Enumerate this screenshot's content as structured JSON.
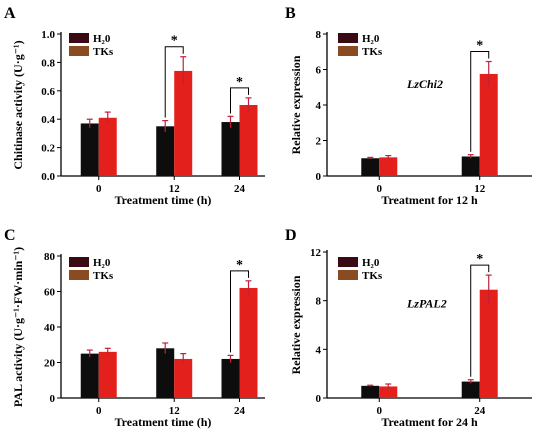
{
  "colors": {
    "h2o": "#0d0d0d",
    "tks": "#e3201b",
    "legend_h2o_swatch": "#3a0a14",
    "legend_tks_swatch": "#8a4a22",
    "error_bar": "#c0203a",
    "axis": "#000000",
    "star_bracket": "#000000"
  },
  "legend": {
    "h2o": "H₂0",
    "tks": "TKs"
  },
  "chart_data": [
    {
      "id": "A",
      "panel_label": "A",
      "type": "bar",
      "ylabel": "Chitinase activity (U·g⁻¹)",
      "xlabel": "Treatment time (h)",
      "categories": [
        "0",
        "12",
        "24"
      ],
      "ylim": [
        0,
        1.0
      ],
      "yticks": [
        0,
        0.2,
        0.4,
        0.6,
        0.8,
        1.0
      ],
      "ytick_labels": [
        "0.0",
        "0.2",
        "0.4",
        "0.6",
        "0.8",
        "1.0"
      ],
      "series": [
        {
          "name": "H₂0",
          "values": [
            0.37,
            0.35,
            0.38
          ],
          "errors": [
            0.03,
            0.04,
            0.04
          ]
        },
        {
          "name": "TKs",
          "values": [
            0.41,
            0.74,
            0.5
          ],
          "errors": [
            0.04,
            0.1,
            0.05
          ]
        }
      ],
      "significance": [
        "",
        "*",
        "*"
      ],
      "annotation": ""
    },
    {
      "id": "B",
      "panel_label": "B",
      "type": "bar",
      "ylabel": "Relative expression",
      "xlabel": "Treatment for 12 h",
      "categories": [
        "0",
        "12"
      ],
      "ylim": [
        0,
        8
      ],
      "yticks": [
        0,
        2,
        4,
        6,
        8
      ],
      "ytick_labels": [
        "0",
        "2",
        "4",
        "6",
        "8"
      ],
      "series": [
        {
          "name": "H₂0",
          "values": [
            1.0,
            1.1
          ],
          "errors": [
            0.05,
            0.1
          ]
        },
        {
          "name": "TKs",
          "values": [
            1.05,
            5.75
          ],
          "errors": [
            0.1,
            0.7
          ]
        }
      ],
      "significance": [
        "",
        "*"
      ],
      "annotation": "LzChi2"
    },
    {
      "id": "C",
      "panel_label": "C",
      "type": "bar",
      "ylabel": "PAL activity (U·g⁻¹·FW·min⁻¹)",
      "xlabel": "Treatment time (h)",
      "categories": [
        "0",
        "12",
        "24"
      ],
      "ylim": [
        0,
        80
      ],
      "yticks": [
        0,
        20,
        40,
        60,
        80
      ],
      "ytick_labels": [
        "0",
        "20",
        "40",
        "60",
        "80"
      ],
      "series": [
        {
          "name": "H₂0",
          "values": [
            25,
            28,
            22
          ],
          "errors": [
            2,
            3,
            2
          ]
        },
        {
          "name": "TKs",
          "values": [
            26,
            22,
            62
          ],
          "errors": [
            2,
            3,
            4
          ]
        }
      ],
      "significance": [
        "",
        "",
        "*"
      ],
      "annotation": ""
    },
    {
      "id": "D",
      "panel_label": "D",
      "type": "bar",
      "ylabel": "Relative expression",
      "xlabel": "Treatment for 24 h",
      "categories": [
        "0",
        "24"
      ],
      "ylim": [
        0,
        12
      ],
      "yticks": [
        0,
        4,
        8,
        12
      ],
      "ytick_labels": [
        "0",
        "4",
        "8",
        "12"
      ],
      "series": [
        {
          "name": "H₂0",
          "values": [
            1.0,
            1.35
          ],
          "errors": [
            0.05,
            0.15
          ]
        },
        {
          "name": "TKs",
          "values": [
            0.95,
            8.9
          ],
          "errors": [
            0.2,
            1.2
          ]
        }
      ],
      "significance": [
        "",
        "*"
      ],
      "annotation": "LzPAL2"
    }
  ]
}
